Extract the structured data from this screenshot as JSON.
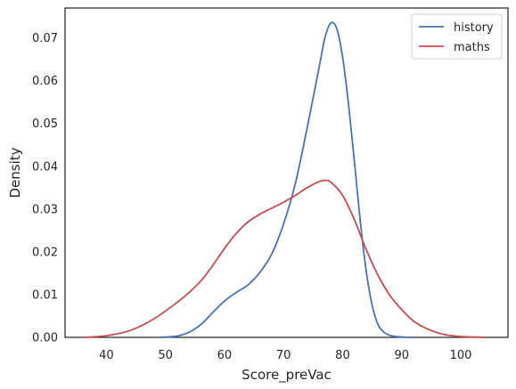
{
  "chart_data": {
    "type": "line",
    "title": "",
    "xlabel": "Score_preVac",
    "ylabel": "Density",
    "xlim": [
      33,
      108
    ],
    "ylim": [
      0,
      0.077
    ],
    "xticks": [
      40,
      50,
      60,
      70,
      80,
      90,
      100
    ],
    "yticks": [
      0.0,
      0.01,
      0.02,
      0.03,
      0.04,
      0.05,
      0.06,
      0.07
    ],
    "xtick_labels": [
      "40",
      "50",
      "60",
      "70",
      "80",
      "90",
      "100"
    ],
    "ytick_labels": [
      "0.00",
      "0.01",
      "0.02",
      "0.03",
      "0.04",
      "0.05",
      "0.06",
      "0.07"
    ],
    "grid": false,
    "legend_position": "top-right",
    "series": [
      {
        "name": "history",
        "color": "#4c72b0",
        "x": [
          49,
          52,
          54,
          56,
          58,
          60,
          62,
          64,
          66,
          68,
          70,
          72,
          74,
          76,
          77,
          78,
          79,
          80,
          81,
          82,
          83,
          84,
          85,
          86,
          87,
          88,
          89,
          90,
          91,
          92
        ],
        "y": [
          0.0,
          0.0003,
          0.0012,
          0.003,
          0.0058,
          0.0085,
          0.0105,
          0.0123,
          0.0152,
          0.0195,
          0.0265,
          0.036,
          0.049,
          0.063,
          0.07,
          0.0735,
          0.0722,
          0.0655,
          0.0545,
          0.041,
          0.027,
          0.0155,
          0.0075,
          0.003,
          0.0012,
          0.0005,
          0.0002,
          0.0001,
          3e-05,
          0.0
        ]
      },
      {
        "name": "maths",
        "color": "#c44e52",
        "x": [
          36,
          40,
          44,
          48,
          52,
          54,
          56,
          58,
          60,
          62,
          64,
          66,
          68,
          70,
          72,
          74,
          76,
          77,
          78,
          80,
          82,
          84,
          86,
          88,
          90,
          92,
          94,
          96,
          98,
          100,
          104
        ],
        "y": [
          0.0,
          0.0004,
          0.0016,
          0.0043,
          0.0082,
          0.0105,
          0.0132,
          0.0168,
          0.0208,
          0.0243,
          0.027,
          0.0288,
          0.0302,
          0.0316,
          0.0332,
          0.035,
          0.0364,
          0.0367,
          0.0363,
          0.0332,
          0.0275,
          0.0205,
          0.0145,
          0.0098,
          0.0065,
          0.0038,
          0.0022,
          0.0011,
          0.0005,
          0.0002,
          0.0
        ]
      }
    ]
  }
}
